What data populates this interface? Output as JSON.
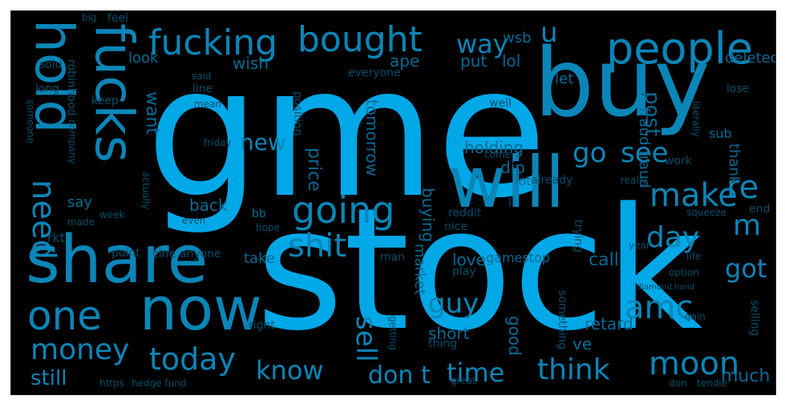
{
  "palette": {
    "background": "#000000",
    "bright": "#00a8e8",
    "mid": "#0a86b8",
    "dim": "#066a94",
    "faint": "#054d6b"
  },
  "words": [
    {
      "text": "gme",
      "tone": "bright"
    },
    {
      "text": "stock",
      "tone": "bright"
    },
    {
      "text": "buy",
      "tone": "mid"
    },
    {
      "text": "will",
      "tone": "mid"
    },
    {
      "text": "share",
      "tone": "mid"
    },
    {
      "text": "hold",
      "tone": "mid"
    },
    {
      "text": "fucks",
      "tone": "mid"
    },
    {
      "text": "fucking",
      "tone": "mid"
    },
    {
      "text": "bought",
      "tone": "mid"
    },
    {
      "text": "people",
      "tone": "mid"
    },
    {
      "text": "now",
      "tone": "mid"
    },
    {
      "text": "one",
      "tone": "mid"
    },
    {
      "text": "money",
      "tone": "mid"
    },
    {
      "text": "today",
      "tone": "mid"
    },
    {
      "text": "know",
      "tone": "mid"
    },
    {
      "text": "time",
      "tone": "mid"
    },
    {
      "text": "think",
      "tone": "mid"
    },
    {
      "text": "moon",
      "tone": "mid"
    },
    {
      "text": "going",
      "tone": "mid"
    },
    {
      "text": "shit",
      "tone": "mid"
    },
    {
      "text": "make",
      "tone": "mid"
    },
    {
      "text": "re",
      "tone": "mid"
    },
    {
      "text": "amc",
      "tone": "mid"
    },
    {
      "text": "sell",
      "tone": "mid"
    },
    {
      "text": "way",
      "tone": "mid"
    },
    {
      "text": "need",
      "tone": "mid"
    },
    {
      "text": "go",
      "tone": "mid"
    },
    {
      "text": "see",
      "tone": "mid"
    },
    {
      "text": "day",
      "tone": "mid"
    },
    {
      "text": "got",
      "tone": "mid"
    },
    {
      "text": "m",
      "tone": "mid"
    },
    {
      "text": "guy",
      "tone": "mid"
    },
    {
      "text": "new",
      "tone": "mid"
    },
    {
      "text": "still",
      "tone": "mid"
    },
    {
      "text": "don t",
      "tone": "mid"
    },
    {
      "text": "u",
      "tone": "mid"
    },
    {
      "text": "post",
      "tone": "dim"
    },
    {
      "text": "much",
      "tone": "dim"
    },
    {
      "text": "deleted",
      "tone": "dim"
    },
    {
      "text": "want",
      "tone": "dim"
    },
    {
      "text": "wish",
      "tone": "dim"
    },
    {
      "text": "look",
      "tone": "dim"
    },
    {
      "text": "ape",
      "tone": "dim"
    },
    {
      "text": "put",
      "tone": "dim"
    },
    {
      "text": "lol",
      "tone": "dim"
    },
    {
      "text": "let",
      "tone": "dim"
    },
    {
      "text": "wsb",
      "tone": "dim"
    },
    {
      "text": "price",
      "tone": "dim"
    },
    {
      "text": "tomorrow",
      "tone": "dim"
    },
    {
      "text": "buying",
      "tone": "dim"
    },
    {
      "text": "holding",
      "tone": "dim"
    },
    {
      "text": "dip",
      "tone": "dim"
    },
    {
      "text": "back",
      "tone": "dim"
    },
    {
      "text": "say",
      "tone": "dim"
    },
    {
      "text": "take",
      "tone": "dim"
    },
    {
      "text": "market",
      "tone": "dim"
    },
    {
      "text": "love",
      "tone": "dim"
    },
    {
      "text": "gamestop",
      "tone": "dim"
    },
    {
      "text": "call",
      "tone": "dim"
    },
    {
      "text": "short",
      "tone": "dim"
    },
    {
      "text": "good",
      "tone": "dim"
    },
    {
      "text": "ve",
      "tone": "dim"
    },
    {
      "text": "retard",
      "tone": "dim"
    },
    {
      "text": "thank",
      "tone": "dim"
    },
    {
      "text": "fraud fraud",
      "tone": "dim"
    },
    {
      "text": "sub",
      "tone": "dim"
    },
    {
      "text": "bb",
      "tone": "dim"
    },
    {
      "text": "lot",
      "tone": "dim"
    },
    {
      "text": "already",
      "tone": "faint"
    },
    {
      "text": "feel",
      "tone": "faint"
    },
    {
      "text": "big",
      "tone": "faint"
    },
    {
      "text": "long",
      "tone": "faint"
    },
    {
      "text": "sold",
      "tone": "faint"
    },
    {
      "text": "robinhood",
      "tone": "faint"
    },
    {
      "text": "keep",
      "tone": "faint"
    },
    {
      "text": "said",
      "tone": "faint"
    },
    {
      "text": "everyone",
      "tone": "faint"
    },
    {
      "text": "line",
      "tone": "faint"
    },
    {
      "text": "mean",
      "tone": "faint"
    },
    {
      "text": "position",
      "tone": "faint"
    },
    {
      "text": "friday",
      "tone": "faint"
    },
    {
      "text": "company",
      "tone": "faint"
    },
    {
      "text": "actually",
      "tone": "faint"
    },
    {
      "text": "someone",
      "tone": "faint"
    },
    {
      "text": "made",
      "tone": "faint"
    },
    {
      "text": "week",
      "tone": "faint"
    },
    {
      "text": "even",
      "tone": "faint"
    },
    {
      "text": "hope",
      "tone": "faint"
    },
    {
      "text": "rkt",
      "tone": "faint"
    },
    {
      "text": "point",
      "tone": "faint"
    },
    {
      "text": "cine",
      "tone": "faint"
    },
    {
      "text": "anyone",
      "tone": "faint"
    },
    {
      "text": "man",
      "tone": "faint"
    },
    {
      "text": "reddit",
      "tone": "faint"
    },
    {
      "text": "nice",
      "tone": "faint"
    },
    {
      "text": "ll",
      "tone": "faint"
    },
    {
      "text": "well",
      "tone": "faint"
    },
    {
      "text": "come",
      "tone": "faint"
    },
    {
      "text": "work",
      "tone": "faint"
    },
    {
      "text": "really",
      "tone": "faint"
    },
    {
      "text": "trying",
      "tone": "faint"
    },
    {
      "text": "play",
      "tone": "faint"
    },
    {
      "text": "thing",
      "tone": "faint"
    },
    {
      "text": "getting",
      "tone": "faint"
    },
    {
      "text": "something",
      "tone": "faint"
    },
    {
      "text": "option",
      "tone": "faint"
    },
    {
      "text": "year",
      "tone": "faint"
    },
    {
      "text": "diamond hand",
      "tone": "faint"
    },
    {
      "text": "selling",
      "tone": "faint"
    },
    {
      "text": "lose",
      "tone": "faint"
    },
    {
      "text": "literally",
      "tone": "faint"
    },
    {
      "text": "squeeze",
      "tone": "faint"
    },
    {
      "text": "end",
      "tone": "faint"
    },
    {
      "text": "https",
      "tone": "faint"
    },
    {
      "text": "hedge fund",
      "tone": "faint"
    },
    {
      "text": "right",
      "tone": "faint"
    },
    {
      "text": "tendie",
      "tone": "faint"
    },
    {
      "text": "don",
      "tone": "faint"
    },
    {
      "text": "gain",
      "tone": "faint"
    },
    {
      "text": "life",
      "tone": "faint"
    },
    {
      "text": "great",
      "tone": "faint"
    }
  ]
}
